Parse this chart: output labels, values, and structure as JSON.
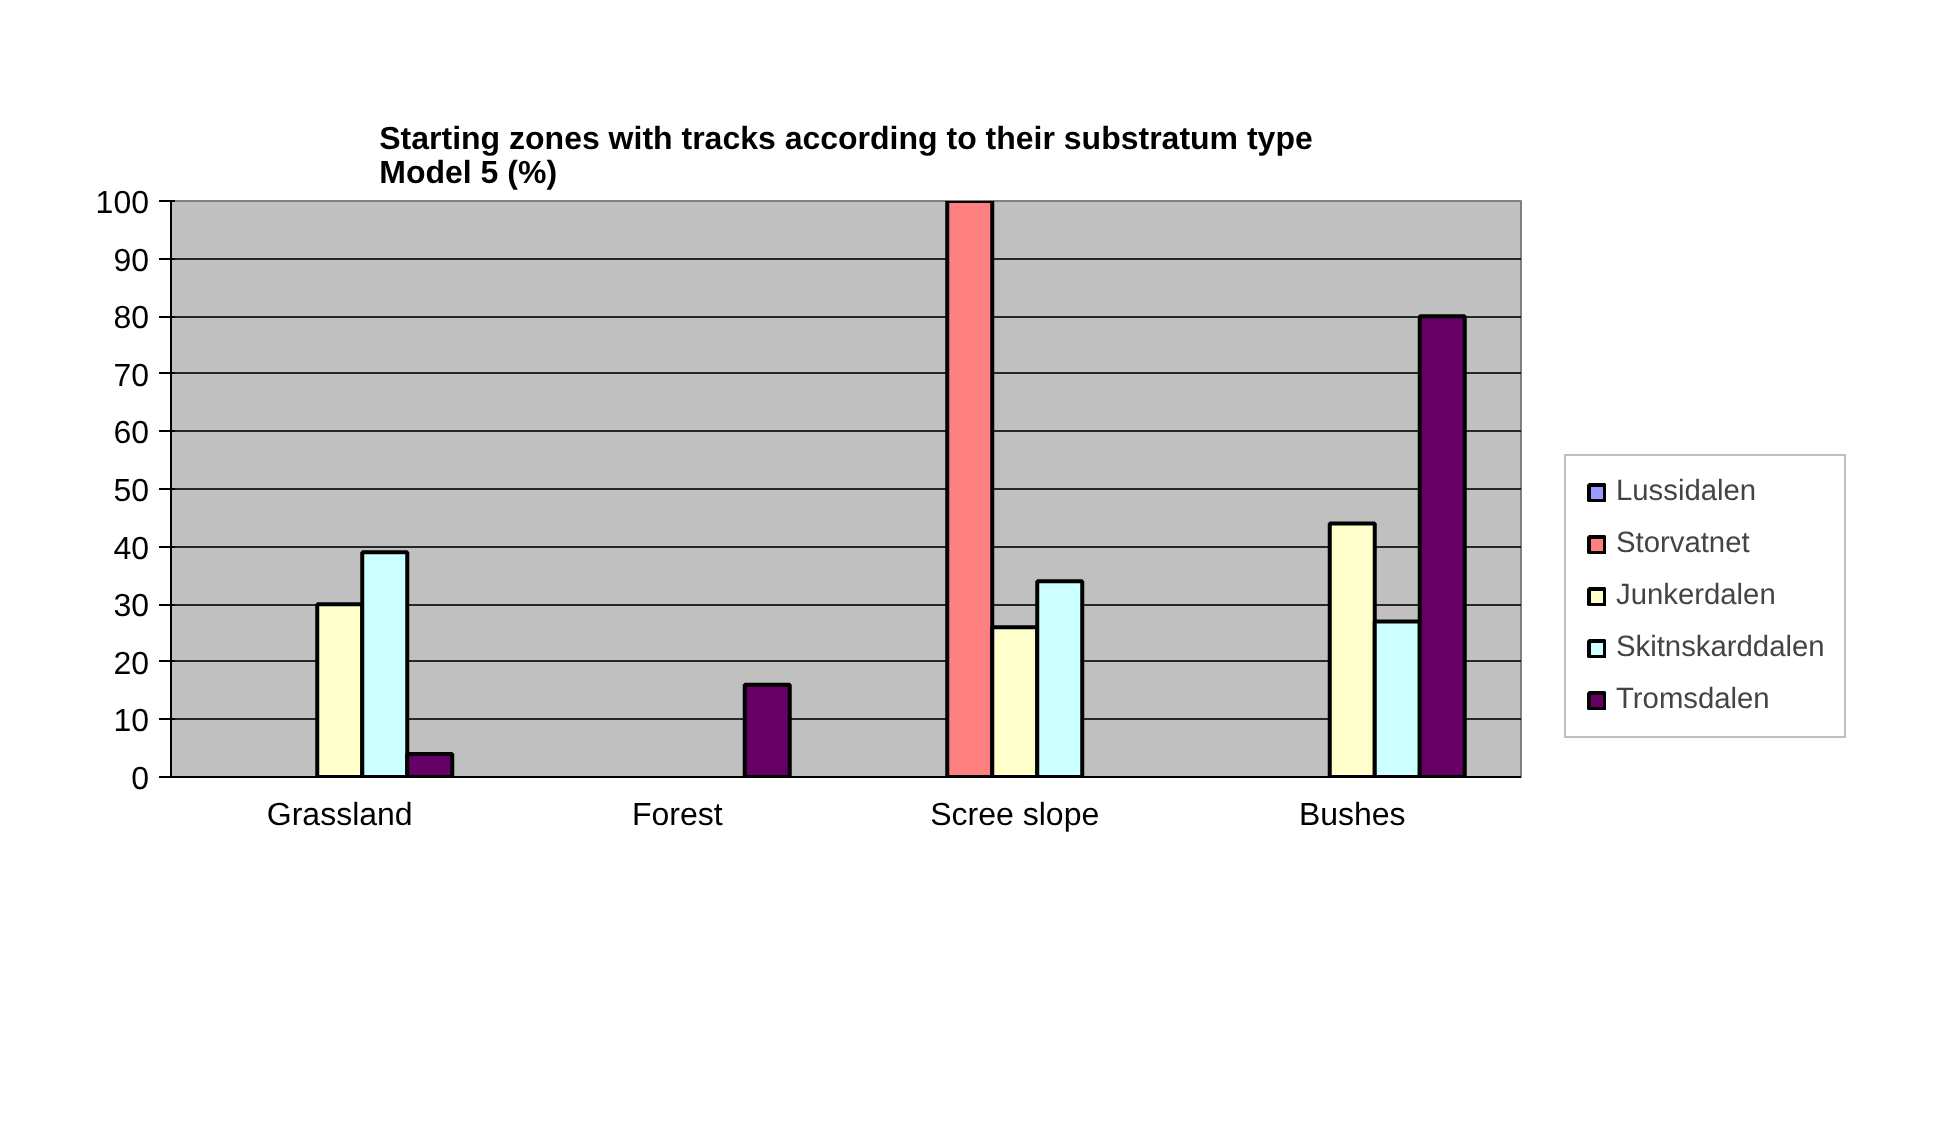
{
  "chart_data": {
    "type": "bar",
    "title": "Starting zones with tracks according to their substratum type\nModel 5 (%)",
    "categories": [
      "Grassland",
      "Forest",
      "Scree slope",
      "Bushes"
    ],
    "series": [
      {
        "name": "Lussidalen",
        "color": "#9999ff",
        "values": [
          null,
          null,
          null,
          null
        ]
      },
      {
        "name": "Storvatnet",
        "color": "#ff8080",
        "values": [
          null,
          null,
          100,
          null
        ]
      },
      {
        "name": "Junkerdalen",
        "color": "#ffffcc",
        "values": [
          30,
          null,
          26,
          44
        ]
      },
      {
        "name": "Skitnskarddalen",
        "color": "#ccffff",
        "values": [
          39,
          null,
          34,
          27
        ]
      },
      {
        "name": "Tromsdalen",
        "color": "#660066",
        "values": [
          4,
          16,
          null,
          80
        ]
      }
    ],
    "ylim": [
      0,
      100
    ],
    "yticks": [
      0,
      10,
      20,
      30,
      40,
      50,
      60,
      70,
      80,
      90,
      100
    ],
    "grid": "y",
    "legend": "right"
  }
}
